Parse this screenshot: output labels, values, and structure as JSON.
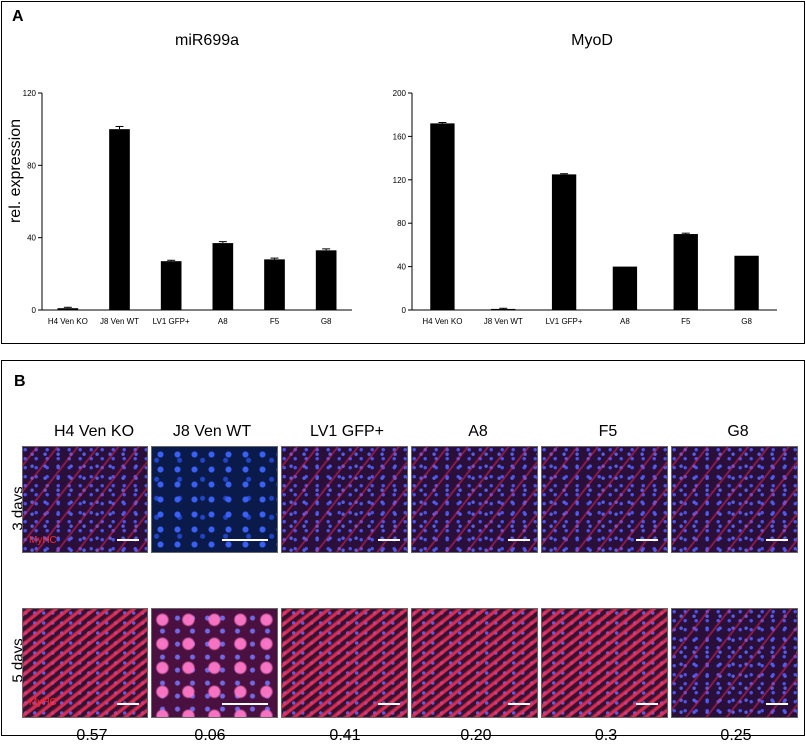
{
  "panel_a": {
    "letter": "A"
  },
  "panel_b": {
    "letter": "B",
    "columns": [
      "H4 Ven KO",
      "J8 Ven WT",
      "LV1 GFP+",
      "A8",
      "F5",
      "G8"
    ],
    "rows": [
      "3 days",
      "5 days"
    ],
    "stain_label": "MyHC",
    "ratios": [
      "0.57",
      "0.06",
      "0.41",
      "0.20",
      "0.3",
      "0.25"
    ],
    "colors": {
      "stain": "#ff2a2a",
      "nuclei": "#3c64ff"
    }
  },
  "chart_data": [
    {
      "type": "bar",
      "title": "miR699a",
      "ylabel": "rel. expression",
      "categories": [
        "H4 Ven KO",
        "J8 Ven WT",
        "LV1 GFP+",
        "A8",
        "F5",
        "G8"
      ],
      "values": [
        1,
        100,
        27,
        37,
        28,
        33
      ],
      "errors": [
        0.5,
        1.5,
        0.5,
        0.8,
        0.7,
        0.8
      ],
      "ylim": [
        0,
        120
      ],
      "yticks": [
        0,
        40,
        80,
        120
      ],
      "bar_color": "#000000"
    },
    {
      "type": "bar",
      "title": "MyoD",
      "ylabel": "",
      "categories": [
        "H4 Ven KO",
        "J8 Ven WT",
        "LV1 GFP+",
        "A8",
        "F5",
        "G8"
      ],
      "values": [
        172,
        1,
        125,
        40,
        70,
        50
      ],
      "errors": [
        0.8,
        0.6,
        0.6,
        0,
        0.8,
        0
      ],
      "ylim": [
        0,
        200
      ],
      "yticks": [
        0,
        40,
        80,
        120,
        160,
        200
      ],
      "bar_color": "#000000"
    }
  ]
}
